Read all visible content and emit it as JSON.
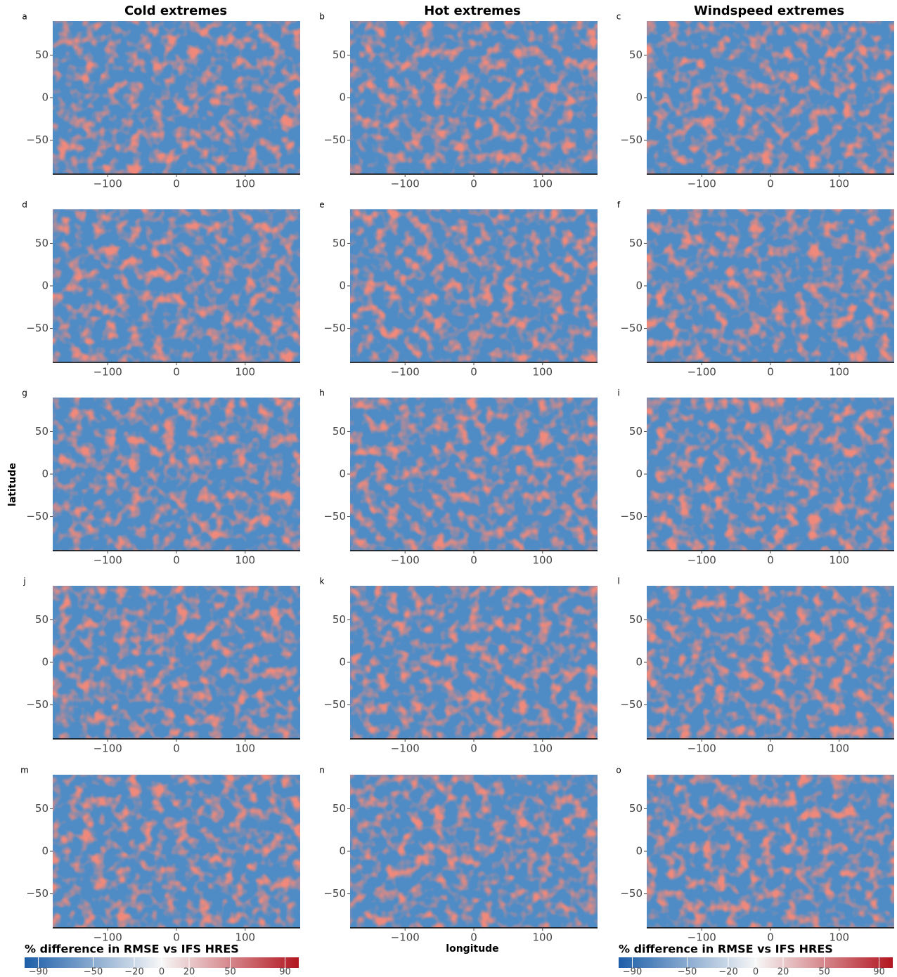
{
  "column_titles": [
    "Cold extremes",
    "Hot extremes",
    "Windspeed extremes"
  ],
  "y_label": "latitude",
  "x_label": "longitude",
  "chart_data": [
    {
      "type": "heatmap",
      "panel": "a",
      "xlim": [
        -180,
        180
      ],
      "ylim": [
        -90,
        90
      ],
      "xticks": [
        {
          "value": -100,
          "label": "−100"
        },
        0,
        100
      ],
      "yticks": [
        {
          "value": -50,
          "label": "−50"
        },
        0,
        50
      ]
    },
    {
      "type": "heatmap",
      "panel": "b",
      "xlim": [
        -180,
        180
      ],
      "ylim": [
        -90,
        90
      ],
      "xticks": [
        {
          "value": -100,
          "label": "−100"
        },
        0,
        100
      ],
      "yticks": [
        {
          "value": -50,
          "label": "−50"
        },
        0,
        50
      ]
    },
    {
      "type": "heatmap",
      "panel": "c",
      "xlim": [
        -180,
        180
      ],
      "ylim": [
        -90,
        90
      ],
      "xticks": [
        {
          "value": -100,
          "label": "−100"
        },
        0,
        100
      ],
      "yticks": [
        {
          "value": -50,
          "label": "−50"
        },
        0,
        50
      ]
    },
    {
      "type": "heatmap",
      "panel": "d",
      "xlim": [
        -180,
        180
      ],
      "ylim": [
        -90,
        90
      ],
      "xticks": [
        {
          "value": -100,
          "label": "−100"
        },
        0,
        100
      ],
      "yticks": [
        {
          "value": -50,
          "label": "−50"
        },
        0,
        50
      ]
    },
    {
      "type": "heatmap",
      "panel": "e",
      "xlim": [
        -180,
        180
      ],
      "ylim": [
        -90,
        90
      ],
      "xticks": [
        {
          "value": -100,
          "label": "−100"
        },
        0,
        100
      ],
      "yticks": [
        {
          "value": -50,
          "label": "−50"
        },
        0,
        50
      ]
    },
    {
      "type": "heatmap",
      "panel": "f",
      "xlim": [
        -180,
        180
      ],
      "ylim": [
        -90,
        90
      ],
      "xticks": [
        {
          "value": -100,
          "label": "−100"
        },
        0,
        100
      ],
      "yticks": [
        {
          "value": -50,
          "label": "−50"
        },
        0,
        50
      ]
    },
    {
      "type": "heatmap",
      "panel": "g",
      "xlim": [
        -180,
        180
      ],
      "ylim": [
        -90,
        90
      ],
      "xticks": [
        {
          "value": -100,
          "label": "−100"
        },
        0,
        100
      ],
      "yticks": [
        {
          "value": -50,
          "label": "−50"
        },
        0,
        50
      ]
    },
    {
      "type": "heatmap",
      "panel": "h",
      "xlim": [
        -180,
        180
      ],
      "ylim": [
        -90,
        90
      ],
      "xticks": [
        {
          "value": -100,
          "label": "−100"
        },
        0,
        100
      ],
      "yticks": [
        {
          "value": -50,
          "label": "−50"
        },
        0,
        50
      ]
    },
    {
      "type": "heatmap",
      "panel": "i",
      "xlim": [
        -180,
        180
      ],
      "ylim": [
        -90,
        90
      ],
      "xticks": [
        {
          "value": -100,
          "label": "−100"
        },
        0,
        100
      ],
      "yticks": [
        {
          "value": -50,
          "label": "−50"
        },
        0,
        50
      ]
    },
    {
      "type": "heatmap",
      "panel": "j",
      "xlim": [
        -180,
        180
      ],
      "ylim": [
        -90,
        90
      ],
      "xticks": [
        {
          "value": -100,
          "label": "−100"
        },
        0,
        100
      ],
      "yticks": [
        {
          "value": -50,
          "label": "−50"
        },
        0,
        50
      ]
    },
    {
      "type": "heatmap",
      "panel": "k",
      "xlim": [
        -180,
        180
      ],
      "ylim": [
        -90,
        90
      ],
      "xticks": [
        {
          "value": -100,
          "label": "−100"
        },
        0,
        100
      ],
      "yticks": [
        {
          "value": -50,
          "label": "−50"
        },
        0,
        50
      ]
    },
    {
      "type": "heatmap",
      "panel": "l",
      "xlim": [
        -180,
        180
      ],
      "ylim": [
        -90,
        90
      ],
      "xticks": [
        {
          "value": -100,
          "label": "−100"
        },
        0,
        100
      ],
      "yticks": [
        {
          "value": -50,
          "label": "−50"
        },
        0,
        50
      ]
    },
    {
      "type": "heatmap",
      "panel": "m",
      "xlim": [
        -180,
        180
      ],
      "ylim": [
        -90,
        90
      ],
      "xticks": [
        {
          "value": -100,
          "label": "−100"
        },
        0,
        100
      ],
      "yticks": [
        {
          "value": -50,
          "label": "−50"
        },
        0,
        50
      ]
    },
    {
      "type": "heatmap",
      "panel": "n",
      "xlim": [
        -180,
        180
      ],
      "ylim": [
        -90,
        90
      ],
      "xticks": [
        {
          "value": -100,
          "label": "−100"
        },
        0,
        100
      ],
      "yticks": [
        {
          "value": -50,
          "label": "−50"
        },
        0,
        50
      ]
    },
    {
      "type": "heatmap",
      "panel": "o",
      "xlim": [
        -180,
        180
      ],
      "ylim": [
        -90,
        90
      ],
      "xticks": [
        {
          "value": -100,
          "label": "−100"
        },
        0,
        100
      ],
      "yticks": [
        {
          "value": -50,
          "label": "−50"
        },
        0,
        50
      ]
    }
  ],
  "colorbars": [
    {
      "label": "% difference in RMSE vs IFS HRES",
      "lim": [
        -100,
        100
      ],
      "colors": [
        "#1c5ea8",
        "#f7f7f7",
        "#b2161f"
      ],
      "ticks": [
        {
          "value": -90,
          "label": "−90"
        },
        {
          "value": -50,
          "label": "−50"
        },
        {
          "value": -20,
          "label": "−20"
        },
        0,
        20,
        50,
        90
      ]
    },
    {
      "label": "% difference in RMSE vs IFS HRES",
      "lim": [
        -100,
        100
      ],
      "colors": [
        "#1c5ea8",
        "#f7f7f7",
        "#b2161f"
      ],
      "ticks": [
        {
          "value": -90,
          "label": "−90"
        },
        {
          "value": -50,
          "label": "−50"
        },
        {
          "value": -20,
          "label": "−20"
        },
        0,
        20,
        50,
        90
      ]
    }
  ]
}
